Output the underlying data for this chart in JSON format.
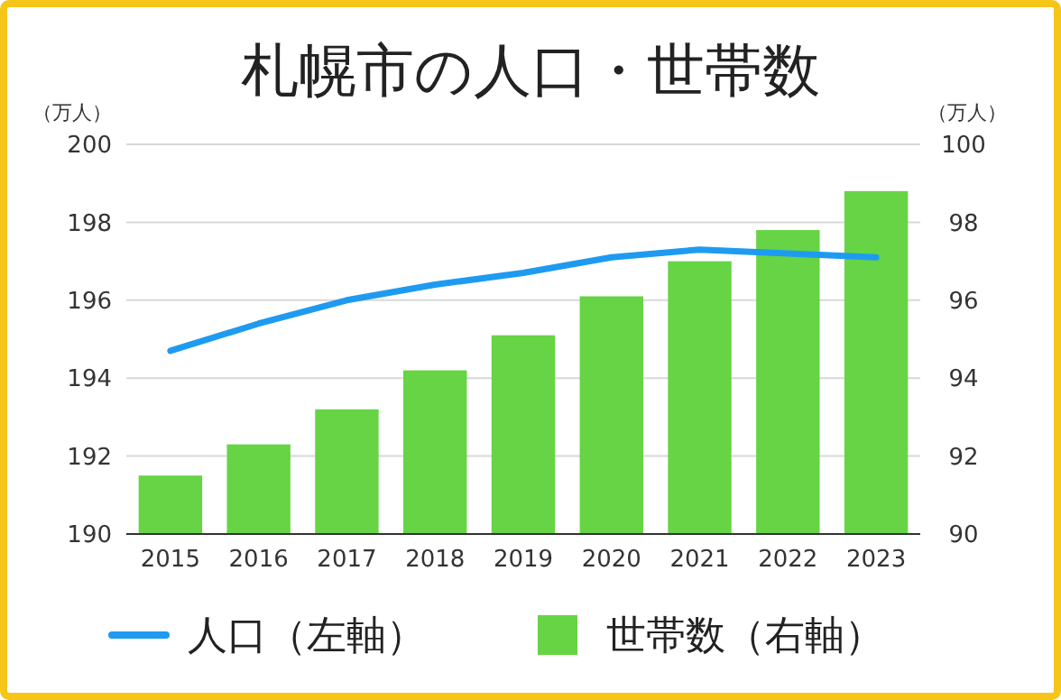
{
  "chart_data": {
    "type": "bar",
    "title": "札幌市の人口・世帯数",
    "ylabel": "（万人）",
    "y2label": "（万人）",
    "categories": [
      "2015",
      "2016",
      "2017",
      "2018",
      "2019",
      "2020",
      "2021",
      "2022",
      "2023"
    ],
    "series": [
      {
        "name": "人口（左軸）",
        "type": "line",
        "color": "#1e9bf0",
        "values": [
          194.7,
          195.4,
          196.0,
          196.4,
          196.7,
          197.1,
          197.3,
          197.2,
          197.1
        ]
      },
      {
        "name": "世帯数（右軸）",
        "axis": "y2",
        "color": "#66d444",
        "values": [
          91.5,
          92.3,
          93.2,
          94.2,
          95.1,
          96.1,
          97.0,
          97.8,
          98.8
        ]
      }
    ],
    "ylim": [
      190,
      200
    ],
    "yticks": [
      190,
      192,
      194,
      196,
      198,
      200
    ],
    "y2lim": [
      90,
      100
    ],
    "y2ticks": [
      90,
      92,
      94,
      96,
      98,
      100
    ],
    "grid": "y",
    "legend": "bottom",
    "marker": "none",
    "line_style": "solid"
  }
}
